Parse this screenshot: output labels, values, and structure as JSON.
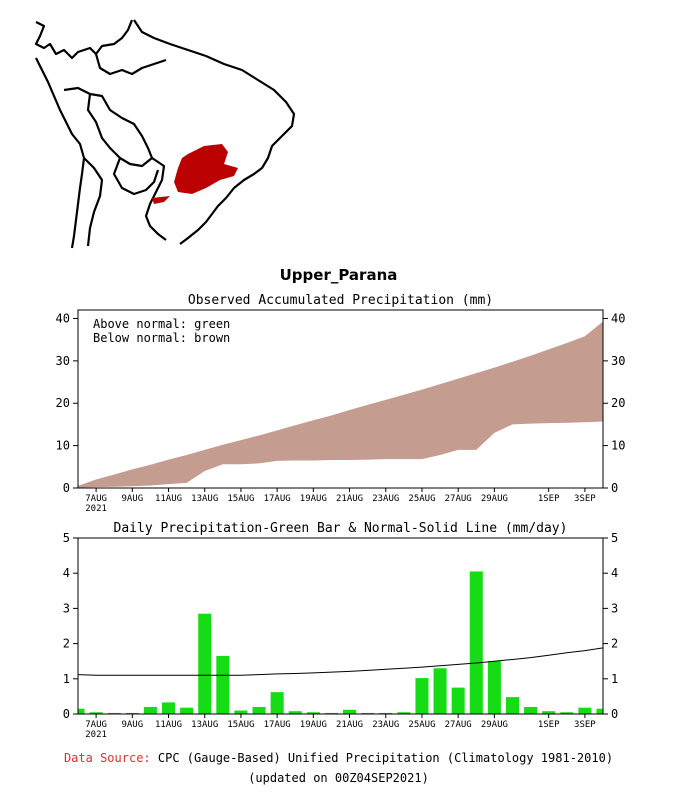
{
  "region_name": "Upper_Parana",
  "footer": {
    "source_label": "Data Source:",
    "source_text": "CPC (Gauge-Based) Unified Precipitation (Climatology 1981-2010)",
    "updated": "(updated on 00Z04SEP2021)"
  },
  "colors": {
    "below_normal_fill": "#c49c90",
    "daily_bar": "#16dc16",
    "region_highlight": "#bb0000",
    "source_label": "#e0302a"
  },
  "chart_data": [
    {
      "type": "area",
      "title": "Observed Accumulated Precipitation (mm)",
      "legend_lines": [
        "Above normal: green",
        "Below normal: brown"
      ],
      "legend_position": "top-left",
      "x_start": "2021-08-06",
      "x_end": "2021-09-04",
      "x_tick_labels": [
        "7AUG",
        "9AUG",
        "11AUG",
        "13AUG",
        "15AUG",
        "17AUG",
        "19AUG",
        "21AUG",
        "23AUG",
        "25AUG",
        "27AUG",
        "29AUG",
        "1SEP",
        "3SEP"
      ],
      "x_tick_dates": [
        "2021-08-07",
        "2021-08-09",
        "2021-08-11",
        "2021-08-13",
        "2021-08-15",
        "2021-08-17",
        "2021-08-19",
        "2021-08-21",
        "2021-08-23",
        "2021-08-25",
        "2021-08-27",
        "2021-08-29",
        "2021-09-01",
        "2021-09-03"
      ],
      "x_year_label": "2021",
      "ylim": [
        0,
        42
      ],
      "y_ticks": [
        0,
        10,
        20,
        30,
        40
      ],
      "grid": false,
      "series": [
        {
          "name": "Observed",
          "dates": [
            "2021-08-06",
            "2021-08-07",
            "2021-08-08",
            "2021-08-09",
            "2021-08-10",
            "2021-08-11",
            "2021-08-12",
            "2021-08-13",
            "2021-08-14",
            "2021-08-15",
            "2021-08-16",
            "2021-08-17",
            "2021-08-18",
            "2021-08-19",
            "2021-08-20",
            "2021-08-21",
            "2021-08-22",
            "2021-08-23",
            "2021-08-24",
            "2021-08-25",
            "2021-08-26",
            "2021-08-27",
            "2021-08-28",
            "2021-08-29",
            "2021-08-30",
            "2021-08-31",
            "2021-09-01",
            "2021-09-02",
            "2021-09-03",
            "2021-09-04"
          ],
          "values": [
            0.1,
            0.2,
            0.3,
            0.4,
            0.6,
            0.9,
            1.2,
            4.0,
            5.6,
            5.6,
            5.8,
            6.4,
            6.5,
            6.5,
            6.6,
            6.6,
            6.7,
            6.8,
            6.8,
            6.8,
            7.8,
            9.0,
            9.0,
            13.0,
            15.0,
            15.2,
            15.3,
            15.4,
            15.5,
            15.7
          ]
        },
        {
          "name": "Normal",
          "dates": [
            "2021-08-06",
            "2021-08-07",
            "2021-08-08",
            "2021-08-09",
            "2021-08-10",
            "2021-08-11",
            "2021-08-12",
            "2021-08-13",
            "2021-08-14",
            "2021-08-15",
            "2021-08-16",
            "2021-08-17",
            "2021-08-18",
            "2021-08-19",
            "2021-08-20",
            "2021-08-21",
            "2021-08-22",
            "2021-08-23",
            "2021-08-24",
            "2021-08-25",
            "2021-08-26",
            "2021-08-27",
            "2021-08-28",
            "2021-08-29",
            "2021-08-30",
            "2021-08-31",
            "2021-09-01",
            "2021-09-02",
            "2021-09-03",
            "2021-09-04"
          ],
          "values": [
            0.5,
            2.0,
            3.2,
            4.4,
            5.5,
            6.7,
            7.8,
            9.0,
            10.2,
            11.3,
            12.4,
            13.6,
            14.8,
            16.0,
            17.1,
            18.4,
            19.6,
            20.8,
            22.0,
            23.2,
            24.5,
            25.8,
            27.1,
            28.4,
            29.8,
            31.2,
            32.7,
            34.2,
            35.8,
            39.3
          ]
        }
      ]
    },
    {
      "type": "bar",
      "title": "Daily Precipitation-Green Bar & Normal-Solid Line (mm/day)",
      "x_start": "2021-08-06",
      "x_end": "2021-09-04",
      "x_tick_labels": [
        "7AUG",
        "9AUG",
        "11AUG",
        "13AUG",
        "15AUG",
        "17AUG",
        "19AUG",
        "21AUG",
        "23AUG",
        "25AUG",
        "27AUG",
        "29AUG",
        "1SEP",
        "3SEP"
      ],
      "x_tick_dates": [
        "2021-08-07",
        "2021-08-09",
        "2021-08-11",
        "2021-08-13",
        "2021-08-15",
        "2021-08-17",
        "2021-08-19",
        "2021-08-21",
        "2021-08-23",
        "2021-08-25",
        "2021-08-27",
        "2021-08-29",
        "2021-09-01",
        "2021-09-03"
      ],
      "x_year_label": "2021",
      "ylim": [
        0,
        5
      ],
      "y_ticks": [
        0,
        1,
        2,
        3,
        4,
        5
      ],
      "grid": false,
      "series": [
        {
          "name": "Daily Precipitation",
          "dates": [
            "2021-08-06",
            "2021-08-07",
            "2021-08-08",
            "2021-08-09",
            "2021-08-10",
            "2021-08-11",
            "2021-08-12",
            "2021-08-13",
            "2021-08-14",
            "2021-08-15",
            "2021-08-16",
            "2021-08-17",
            "2021-08-18",
            "2021-08-19",
            "2021-08-20",
            "2021-08-21",
            "2021-08-22",
            "2021-08-23",
            "2021-08-24",
            "2021-08-25",
            "2021-08-26",
            "2021-08-27",
            "2021-08-28",
            "2021-08-29",
            "2021-08-30",
            "2021-08-31",
            "2021-09-01",
            "2021-09-02",
            "2021-09-03",
            "2021-09-04"
          ],
          "values": [
            0.15,
            0.05,
            0.03,
            0.03,
            0.2,
            0.33,
            0.18,
            2.85,
            1.65,
            0.1,
            0.2,
            0.62,
            0.08,
            0.05,
            0.03,
            0.12,
            0.03,
            0.03,
            0.05,
            1.02,
            1.3,
            0.75,
            4.05,
            1.5,
            0.48,
            0.2,
            0.08,
            0.05,
            0.18,
            0.15
          ]
        },
        {
          "name": "Normal",
          "dates": [
            "2021-08-06",
            "2021-08-07",
            "2021-08-08",
            "2021-08-09",
            "2021-08-10",
            "2021-08-11",
            "2021-08-12",
            "2021-08-13",
            "2021-08-14",
            "2021-08-15",
            "2021-08-16",
            "2021-08-17",
            "2021-08-18",
            "2021-08-19",
            "2021-08-20",
            "2021-08-21",
            "2021-08-22",
            "2021-08-23",
            "2021-08-24",
            "2021-08-25",
            "2021-08-26",
            "2021-08-27",
            "2021-08-28",
            "2021-08-29",
            "2021-08-30",
            "2021-08-31",
            "2021-09-01",
            "2021-09-02",
            "2021-09-03",
            "2021-09-04"
          ],
          "values": [
            1.12,
            1.1,
            1.1,
            1.1,
            1.1,
            1.1,
            1.1,
            1.1,
            1.1,
            1.1,
            1.12,
            1.14,
            1.15,
            1.17,
            1.19,
            1.21,
            1.24,
            1.27,
            1.3,
            1.33,
            1.37,
            1.41,
            1.45,
            1.5,
            1.55,
            1.6,
            1.67,
            1.74,
            1.8,
            1.88
          ]
        }
      ]
    }
  ]
}
